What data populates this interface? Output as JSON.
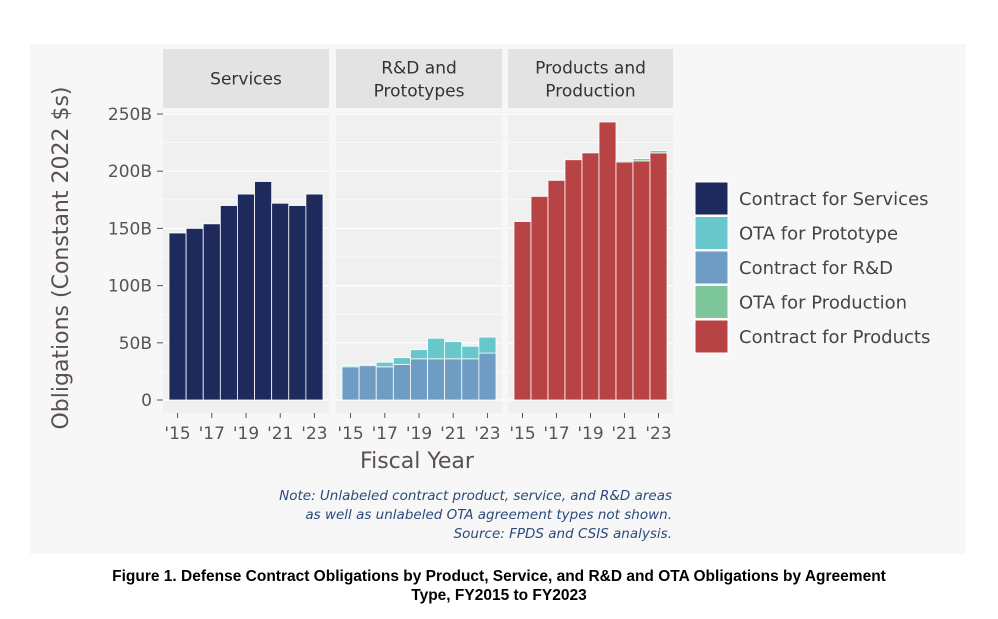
{
  "chart_data": {
    "type": "bar",
    "stacked": true,
    "facets": [
      "Services",
      "R&D and Prototypes",
      "Products and Production"
    ],
    "categories": [
      "2015",
      "2016",
      "2017",
      "2018",
      "2019",
      "2020",
      "2021",
      "2022",
      "2023"
    ],
    "x_tick_labels": [
      "'15",
      "'17",
      "'19",
      "'21",
      "'23"
    ],
    "ylabel": "Obligations (Constant 2022 $s)",
    "xlabel": "Fiscal Year",
    "ylim": [
      0,
      250
    ],
    "y_unit": "billions USD",
    "y_tick_labels": [
      "0",
      "50B",
      "100B",
      "150B",
      "200B",
      "250B"
    ],
    "grid": true,
    "legend_position": "right",
    "colors": {
      "Contract for Services": "#1f2a5c",
      "OTA for Prototype": "#68c7cb",
      "Contract for R&D": "#6f9cc3",
      "OTA for Production": "#7dc79a",
      "Contract for Products": "#b84344"
    },
    "legend": [
      "Contract for Services",
      "OTA for Prototype",
      "Contract for R&D",
      "OTA for Production",
      "Contract for Products"
    ],
    "panels": [
      {
        "facet": "Services",
        "series": [
          {
            "name": "Contract for Services",
            "values": [
              146,
              150,
              154,
              170,
              180,
              191,
              172,
              170,
              180
            ]
          }
        ]
      },
      {
        "facet": "R&D and Prototypes",
        "series": [
          {
            "name": "Contract for R&D",
            "values": [
              29,
              30,
              29,
              31,
              36,
              36,
              36,
              36,
              41
            ]
          },
          {
            "name": "OTA for Prototype",
            "values": [
              1,
              1,
              4,
              6,
              8,
              18,
              15,
              11,
              14
            ]
          }
        ]
      },
      {
        "facet": "Products and Production",
        "series": [
          {
            "name": "Contract for Products",
            "values": [
              156,
              178,
              192,
              210,
              216,
              243,
              208,
              209,
              216
            ]
          },
          {
            "name": "OTA for Production",
            "values": [
              0,
              0,
              0,
              0,
              0,
              0,
              1,
              2,
              2
            ]
          }
        ]
      }
    ],
    "note_lines": [
      "Note: Unlabeled contract product, service, and R&D areas",
      "as well as unlabeled OTA agreement types not shown.",
      "Source: FPDS and CSIS analysis."
    ]
  },
  "caption": {
    "line1": "Figure 1. Defense Contract Obligations by Product, Service, and R&D and OTA Obligations by Agreement",
    "line2": "Type, FY2015 to FY2023"
  }
}
